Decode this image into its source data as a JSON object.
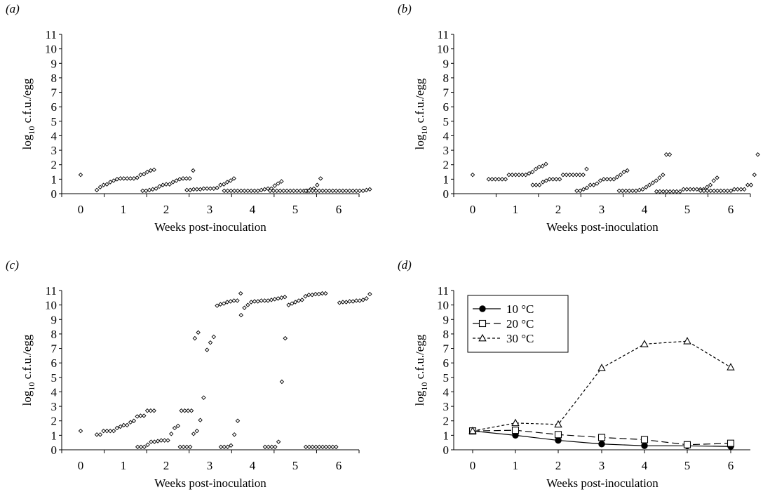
{
  "chart_data": [
    {
      "panel_label": "(a)",
      "type": "scatter",
      "xlabel": "Weeks post-inoculation",
      "ylabel_base": "log",
      "ylabel_sub": "10",
      "ylabel_rest": " c.f.u./egg",
      "x_ticks": [
        "0",
        "1",
        "2",
        "3",
        "4",
        "5",
        "6"
      ],
      "y_ticks": [
        "0",
        "1",
        "2",
        "3",
        "4",
        "5",
        "6",
        "7",
        "8",
        "9",
        "10",
        "11"
      ],
      "ylim": [
        0,
        11
      ],
      "marker": "diamond",
      "groups": [
        {
          "week": 0,
          "values": [
            1.3
          ]
        },
        {
          "week": 1,
          "values": [
            0.25,
            0.45,
            0.6,
            0.65,
            0.8,
            0.9,
            1.0,
            1.05,
            1.05,
            1.05,
            1.05,
            1.05,
            1.1,
            1.3,
            1.35,
            1.5,
            1.6,
            1.65
          ]
        },
        {
          "week": 2,
          "values": [
            0.2,
            0.2,
            0.25,
            0.3,
            0.35,
            0.5,
            0.6,
            0.65,
            0.65,
            0.8,
            0.9,
            1.0,
            1.05,
            1.05,
            1.05,
            1.6
          ]
        },
        {
          "week": 3,
          "values": [
            0.25,
            0.25,
            0.3,
            0.3,
            0.3,
            0.35,
            0.35,
            0.35,
            0.35,
            0.4,
            0.6,
            0.65,
            0.8,
            0.9,
            1.05
          ]
        },
        {
          "week": 4,
          "values": [
            0.2,
            0.2,
            0.2,
            0.2,
            0.2,
            0.2,
            0.2,
            0.2,
            0.2,
            0.2,
            0.2,
            0.25,
            0.3,
            0.35,
            0.35,
            0.55,
            0.7,
            0.85
          ]
        },
        {
          "week": 5,
          "values": [
            0.2,
            0.2,
            0.2,
            0.2,
            0.2,
            0.2,
            0.2,
            0.2,
            0.2,
            0.2,
            0.2,
            0.2,
            0.3,
            0.35,
            0.6,
            1.05
          ]
        },
        {
          "week": 6,
          "values": [
            0.2,
            0.2,
            0.2,
            0.2,
            0.2,
            0.2,
            0.2,
            0.2,
            0.2,
            0.2,
            0.2,
            0.2,
            0.2,
            0.2,
            0.2,
            0.2,
            0.2,
            0.2,
            0.25,
            0.3
          ]
        }
      ]
    },
    {
      "panel_label": "(b)",
      "type": "scatter",
      "xlabel": "Weeks post-inoculation",
      "ylabel_base": "log",
      "ylabel_sub": "10",
      "ylabel_rest": " c.f.u./egg",
      "x_ticks": [
        "0",
        "1",
        "2",
        "3",
        "4",
        "5",
        "6"
      ],
      "y_ticks": [
        "0",
        "1",
        "2",
        "3",
        "4",
        "5",
        "6",
        "7",
        "8",
        "9",
        "10",
        "11"
      ],
      "ylim": [
        0,
        11
      ],
      "marker": "diamond",
      "groups": [
        {
          "week": 0,
          "values": [
            1.3
          ]
        },
        {
          "week": 1,
          "values": [
            1.0,
            1.0,
            1.0,
            1.0,
            1.0,
            1.0,
            1.3,
            1.3,
            1.3,
            1.3,
            1.3,
            1.3,
            1.4,
            1.5,
            1.7,
            1.85,
            1.9,
            2.05
          ]
        },
        {
          "week": 2,
          "values": [
            0.6,
            0.6,
            0.6,
            0.8,
            0.9,
            1.0,
            1.0,
            1.0,
            1.0,
            1.3,
            1.3,
            1.3,
            1.3,
            1.3,
            1.3,
            1.3,
            1.7
          ]
        },
        {
          "week": 3,
          "values": [
            0.2,
            0.2,
            0.3,
            0.4,
            0.6,
            0.6,
            0.7,
            0.9,
            1.0,
            1.0,
            1.0,
            1.0,
            1.15,
            1.3,
            1.5,
            1.6
          ]
        },
        {
          "week": 4,
          "values": [
            0.2,
            0.2,
            0.2,
            0.2,
            0.2,
            0.2,
            0.25,
            0.3,
            0.45,
            0.6,
            0.75,
            0.9,
            1.1,
            1.3,
            2.7,
            2.7
          ]
        },
        {
          "week": 5,
          "values": [
            0.15,
            0.15,
            0.15,
            0.15,
            0.15,
            0.15,
            0.15,
            0.15,
            0.3,
            0.3,
            0.3,
            0.3,
            0.3,
            0.3,
            0.3,
            0.45,
            0.6,
            0.9,
            1.1
          ]
        },
        {
          "week": 6,
          "values": [
            0.2,
            0.2,
            0.2,
            0.2,
            0.2,
            0.2,
            0.2,
            0.2,
            0.2,
            0.2,
            0.3,
            0.3,
            0.3,
            0.3,
            0.6,
            0.6,
            1.3,
            2.7
          ]
        }
      ]
    },
    {
      "panel_label": "(c)",
      "type": "scatter",
      "xlabel": "Weeks post-inoculation",
      "ylabel_base": "log",
      "ylabel_sub": "10",
      "ylabel_rest": " c.f.u./egg",
      "x_ticks": [
        "0",
        "1",
        "2",
        "3",
        "4",
        "5",
        "6"
      ],
      "y_ticks": [
        "0",
        "1",
        "2",
        "3",
        "4",
        "5",
        "6",
        "7",
        "8",
        "9",
        "10",
        "11"
      ],
      "ylim": [
        0,
        11
      ],
      "marker": "diamond",
      "groups": [
        {
          "week": 0,
          "values": [
            1.3
          ]
        },
        {
          "week": 1,
          "values": [
            1.05,
            1.05,
            1.3,
            1.3,
            1.3,
            1.3,
            1.5,
            1.6,
            1.7,
            1.7,
            1.9,
            2.0,
            2.3,
            2.35,
            2.35,
            2.7,
            2.7,
            2.7
          ]
        },
        {
          "week": 2,
          "values": [
            0.2,
            0.2,
            0.2,
            0.35,
            0.55,
            0.55,
            0.6,
            0.65,
            0.65,
            0.65,
            1.1,
            1.5,
            1.65,
            2.7,
            2.7,
            2.7,
            2.7,
            7.7,
            8.1
          ]
        },
        {
          "week": 3,
          "values": [
            0.2,
            0.2,
            0.2,
            0.2,
            1.1,
            1.3,
            2.05,
            3.6,
            6.9,
            7.4,
            7.8,
            9.95,
            10.05,
            10.1,
            10.2,
            10.25,
            10.3,
            10.3,
            10.8
          ]
        },
        {
          "week": 4,
          "values": [
            0.2,
            0.2,
            0.2,
            0.3,
            1.05,
            2.0,
            9.3,
            9.8,
            10.0,
            10.2,
            10.25,
            10.25,
            10.3,
            10.3,
            10.3,
            10.35,
            10.4,
            10.45,
            10.5,
            10.55
          ]
        },
        {
          "week": 5,
          "values": [
            0.2,
            0.2,
            0.2,
            0.2,
            0.55,
            4.7,
            7.7,
            10.0,
            10.1,
            10.2,
            10.3,
            10.35,
            10.6,
            10.7,
            10.7,
            10.75,
            10.75,
            10.8,
            10.8
          ]
        },
        {
          "week": 6,
          "values": [
            0.2,
            0.2,
            0.2,
            0.2,
            0.2,
            0.2,
            0.2,
            0.2,
            0.2,
            0.2,
            10.15,
            10.2,
            10.2,
            10.25,
            10.25,
            10.3,
            10.3,
            10.35,
            10.45,
            10.75
          ]
        }
      ]
    },
    {
      "panel_label": "(d)",
      "type": "line",
      "xlabel": "Weeks post-inoculation",
      "ylabel_base": "log",
      "ylabel_sub": "10",
      "ylabel_rest": " c.f.u./egg",
      "x": [
        0,
        1,
        2,
        3,
        4,
        5,
        6
      ],
      "x_ticks": [
        "0",
        "1",
        "2",
        "3",
        "4",
        "5",
        "6"
      ],
      "y_ticks": [
        "0",
        "1",
        "2",
        "3",
        "4",
        "5",
        "6",
        "7",
        "8",
        "9",
        "10",
        "11"
      ],
      "ylim": [
        0,
        11
      ],
      "legend_position": "top-left",
      "series": [
        {
          "name": "10 °C",
          "marker": "filled-circle",
          "line": "solid",
          "values": [
            1.3,
            1.0,
            0.65,
            0.4,
            0.28,
            0.27,
            0.23
          ]
        },
        {
          "name": "20 °C",
          "marker": "open-square",
          "line": "long-dash",
          "values": [
            1.3,
            1.35,
            1.05,
            0.85,
            0.7,
            0.35,
            0.45
          ]
        },
        {
          "name": "30 °C",
          "marker": "open-triangle",
          "line": "short-dash",
          "values": [
            1.3,
            1.85,
            1.75,
            5.65,
            7.3,
            7.5,
            5.7
          ]
        }
      ]
    }
  ]
}
